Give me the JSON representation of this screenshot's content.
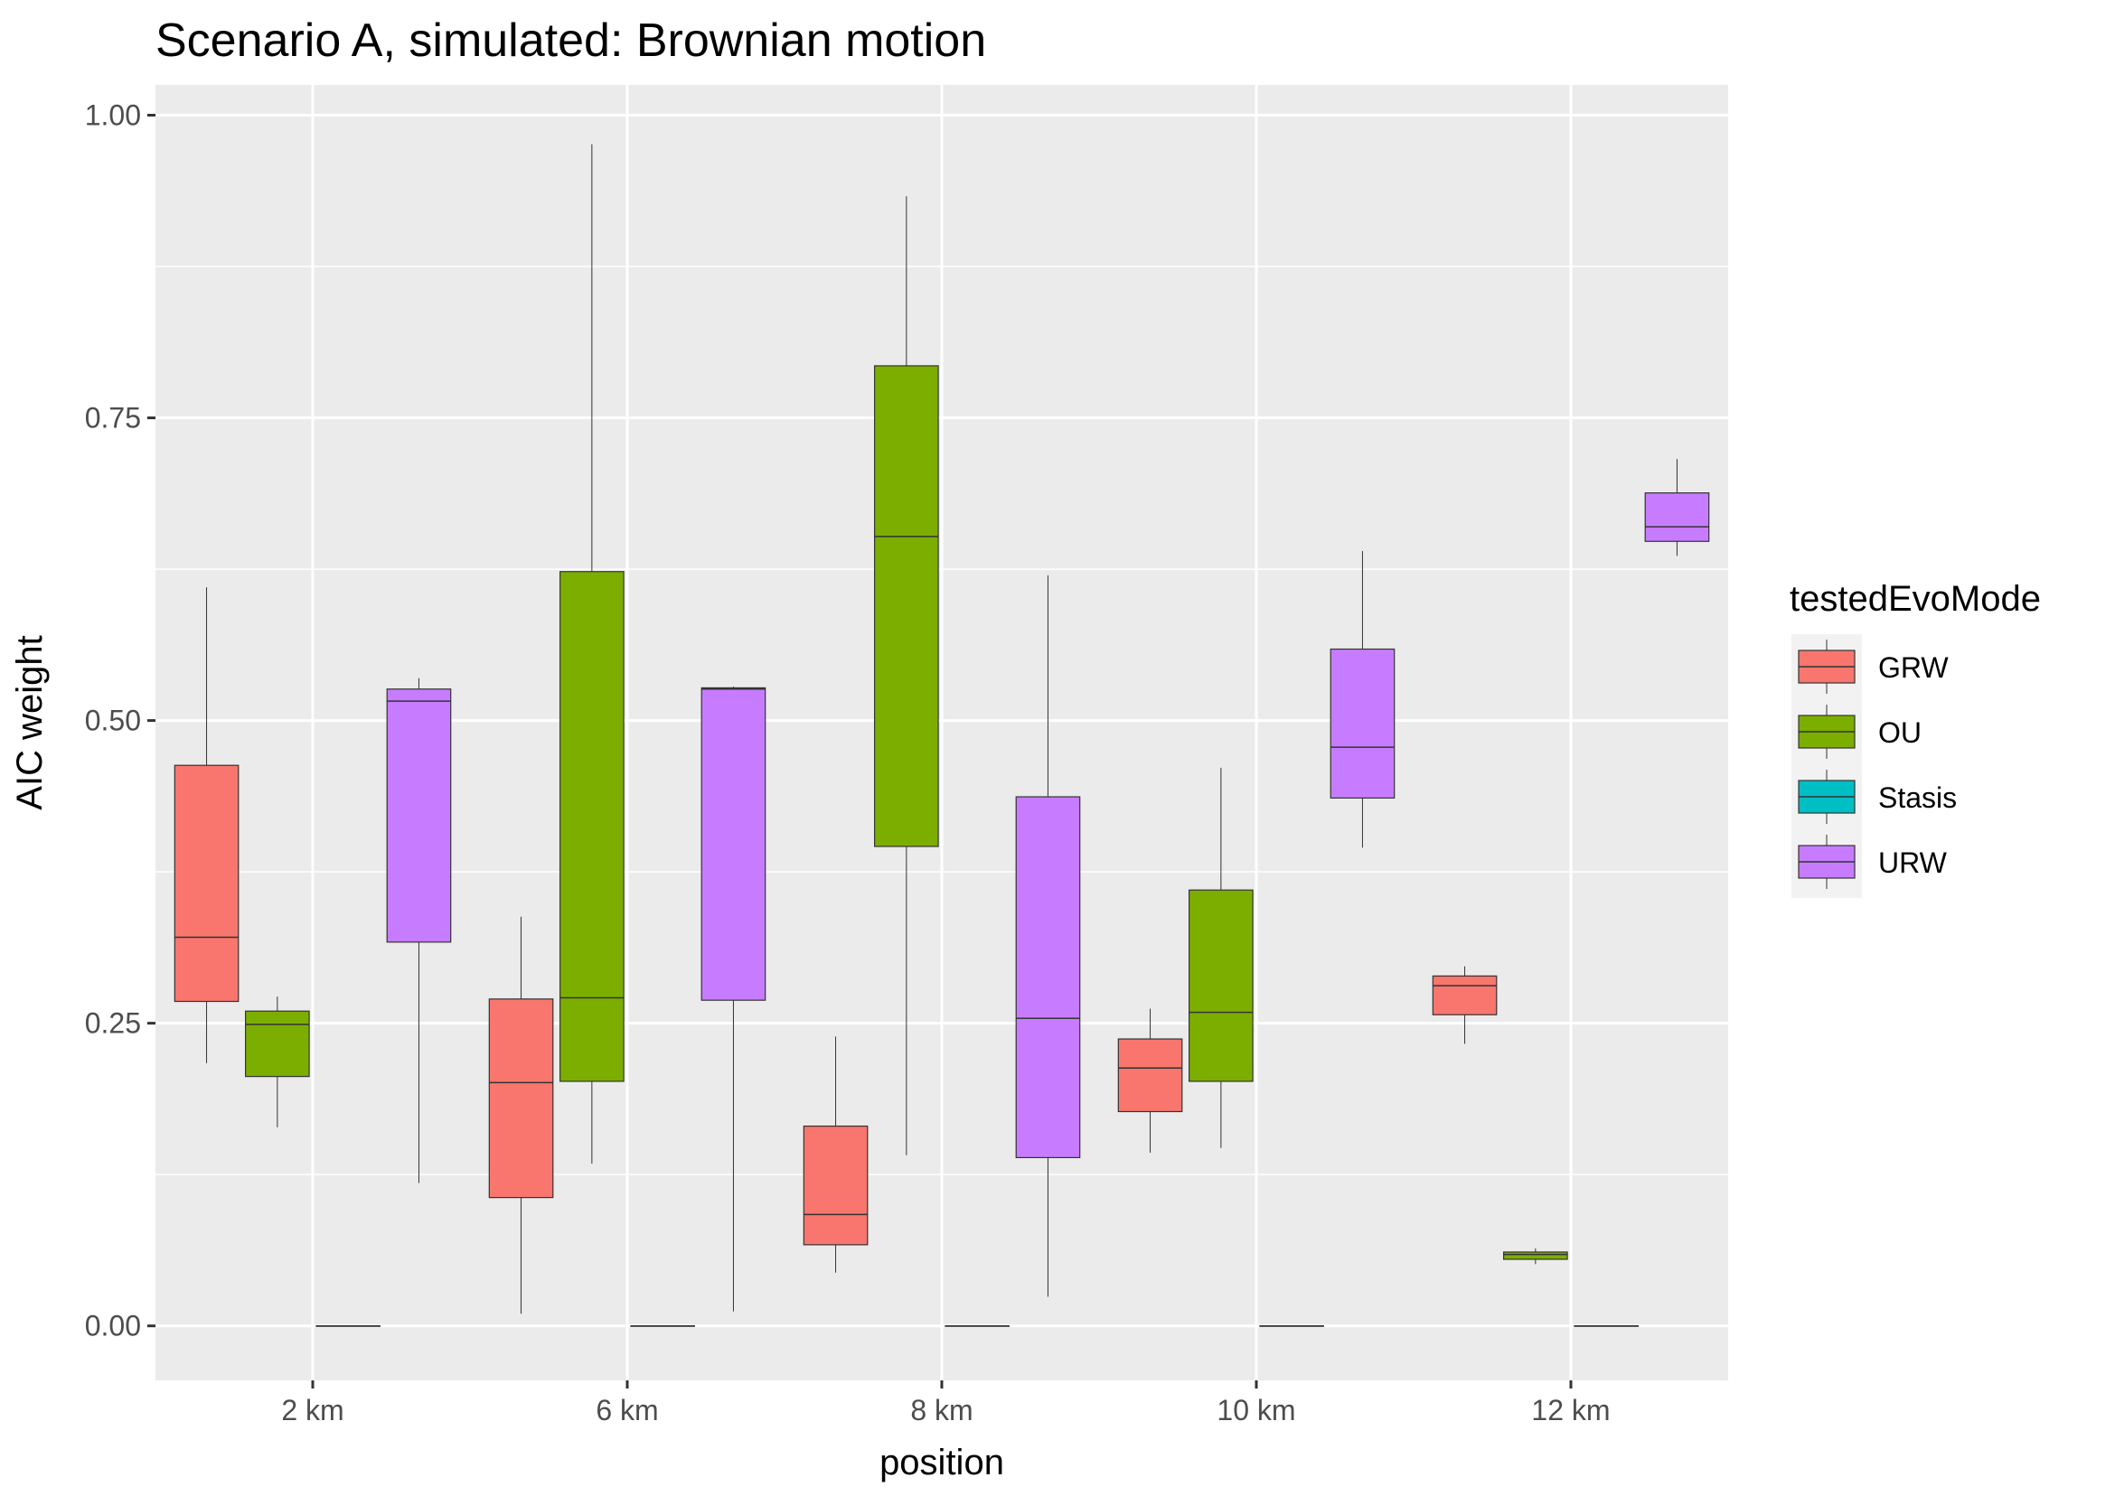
{
  "chart_data": {
    "type": "boxplot",
    "title": "Scenario A, simulated: Brownian motion",
    "xlabel": "position",
    "ylabel": "AIC weight",
    "ylim": [
      -0.045,
      1.025
    ],
    "y_ticks": [
      0.0,
      0.25,
      0.5,
      0.75,
      1.0
    ],
    "y_tick_labels": [
      "0.00",
      "0.25",
      "0.50",
      "0.75",
      "1.00"
    ],
    "categories": [
      "2 km",
      "6 km",
      "8 km",
      "10 km",
      "12 km"
    ],
    "grid": true,
    "legend_position": "right",
    "legend_title": "testedEvoMode",
    "series": [
      {
        "name": "GRW",
        "color": "#F8766D",
        "boxes": [
          {
            "min": 0.217,
            "q1": 0.268,
            "median": 0.321,
            "q3": 0.463,
            "max": 0.61
          },
          {
            "min": 0.01,
            "q1": 0.106,
            "median": 0.201,
            "q3": 0.27,
            "max": 0.338
          },
          {
            "min": 0.044,
            "q1": 0.067,
            "median": 0.092,
            "q3": 0.165,
            "max": 0.239
          },
          {
            "min": 0.143,
            "q1": 0.177,
            "median": 0.213,
            "q3": 0.237,
            "max": 0.262
          },
          {
            "min": 0.233,
            "q1": 0.257,
            "median": 0.281,
            "q3": 0.289,
            "max": 0.297
          }
        ]
      },
      {
        "name": "OU",
        "color": "#7CAE00",
        "boxes": [
          {
            "min": 0.164,
            "q1": 0.206,
            "median": 0.249,
            "q3": 0.26,
            "max": 0.272
          },
          {
            "min": 0.134,
            "q1": 0.202,
            "median": 0.271,
            "q3": 0.623,
            "max": 0.976
          },
          {
            "min": 0.141,
            "q1": 0.396,
            "median": 0.652,
            "q3": 0.793,
            "max": 0.933
          },
          {
            "min": 0.147,
            "q1": 0.202,
            "median": 0.259,
            "q3": 0.36,
            "max": 0.461
          },
          {
            "min": 0.051,
            "q1": 0.055,
            "median": 0.059,
            "q3": 0.061,
            "max": 0.064
          }
        ]
      },
      {
        "name": "Stasis",
        "color": "#00BFC4",
        "boxes": [
          {
            "min": 0.0,
            "q1": 0.0,
            "median": 0.0,
            "q3": 0.0,
            "max": 0.0
          },
          {
            "min": 0.0,
            "q1": 0.0,
            "median": 0.0,
            "q3": 0.0,
            "max": 0.0
          },
          {
            "min": 0.0,
            "q1": 0.0,
            "median": 0.0,
            "q3": 0.0,
            "max": 0.0
          },
          {
            "min": 0.0,
            "q1": 0.0,
            "median": 0.0,
            "q3": 0.0,
            "max": 0.0
          },
          {
            "min": 0.0,
            "q1": 0.0,
            "median": 0.0,
            "q3": 0.0,
            "max": 0.0
          }
        ]
      },
      {
        "name": "URW",
        "color": "#C77CFF",
        "boxes": [
          {
            "min": 0.118,
            "q1": 0.317,
            "median": 0.516,
            "q3": 0.526,
            "max": 0.535
          },
          {
            "min": 0.012,
            "q1": 0.269,
            "median": 0.526,
            "q3": 0.527,
            "max": 0.528
          },
          {
            "min": 0.024,
            "q1": 0.139,
            "median": 0.254,
            "q3": 0.437,
            "max": 0.62
          },
          {
            "min": 0.395,
            "q1": 0.436,
            "median": 0.478,
            "q3": 0.559,
            "max": 0.64
          },
          {
            "min": 0.636,
            "q1": 0.648,
            "median": 0.66,
            "q3": 0.688,
            "max": 0.716
          }
        ]
      }
    ]
  }
}
